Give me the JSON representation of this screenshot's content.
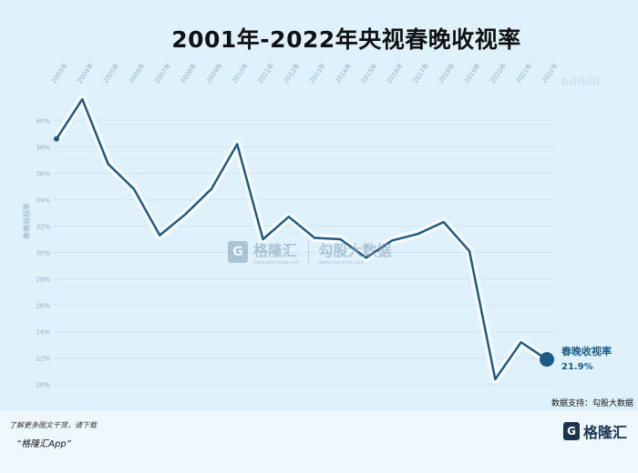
{
  "page": {
    "title": "2001年-2022年央视春晚收视率",
    "source": "数据支持：勾股大数据",
    "promo_line1": "了解更多图文干货，请下载",
    "promo_line2": "“格隆汇App”",
    "logo_text": "格隆汇",
    "logo_icon": "G-logo-icon",
    "watermark_top": "bilibili",
    "watermark_brand": "格隆汇",
    "watermark_brand_url": "www.gelonghui.com",
    "watermark_partner": "勾股大数据",
    "watermark_partner_url": "www.gogudata.com"
  },
  "chart_data": {
    "type": "line",
    "title": "2001年-2022年央视春晚收视率",
    "ylabel": "春晚收视率",
    "xlabel": "",
    "x": [
      "2003年",
      "2004年",
      "2005年",
      "2006年",
      "2007年",
      "2008年",
      "2009年",
      "2010年",
      "2011年",
      "2012年",
      "2013年",
      "2014年",
      "2015年",
      "2016年",
      "2017年",
      "2018年",
      "2019年",
      "2020年",
      "2021年",
      "2022年"
    ],
    "series": [
      {
        "name": "春晚收视率",
        "values": [
          38.6,
          41.6,
          36.7,
          34.8,
          31.3,
          32.9,
          34.8,
          38.2,
          31.0,
          32.7,
          31.1,
          31.0,
          29.6,
          30.9,
          31.4,
          32.3,
          30.1,
          20.4,
          23.2,
          21.9
        ],
        "color": "#1b5b8a"
      }
    ],
    "yticks": [
      20,
      22,
      24,
      26,
      28,
      30,
      32,
      34,
      36,
      38,
      40
    ],
    "ytick_labels": [
      "20%",
      "22%",
      "24%",
      "26%",
      "28%",
      "30%",
      "32%",
      "34%",
      "36%",
      "38%",
      "40%"
    ],
    "ylim": [
      19.5,
      42.5
    ],
    "grid": true,
    "end_label_series": "春晚收视率",
    "end_label_value": "21.9%",
    "line_color": "#1b5b8a",
    "glow_color": "#ffffff",
    "grid_color": "#cfe6f2",
    "tick_color": "#8fb0c4"
  }
}
